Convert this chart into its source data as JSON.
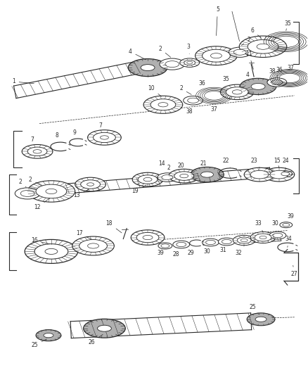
{
  "bg_color": "#ffffff",
  "line_color": "#2a2a2a",
  "fig_width": 4.38,
  "fig_height": 5.33,
  "dpi": 100,
  "label_fs": 5.5
}
